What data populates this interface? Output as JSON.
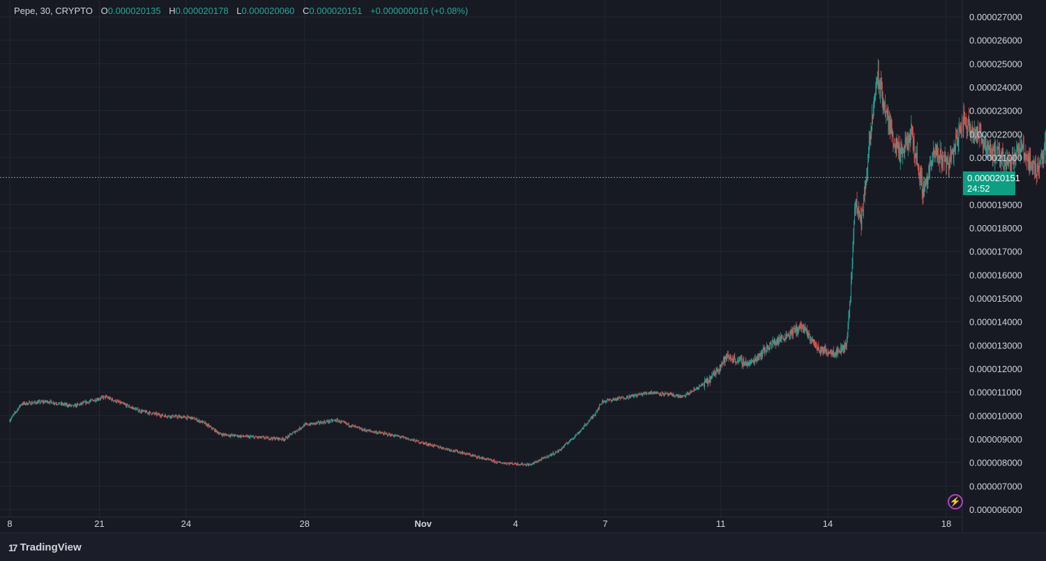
{
  "header": {
    "symbol": "Pepe, 30, CRYPTO",
    "open_label": "O",
    "open": "0.000020135",
    "high_label": "H",
    "high": "0.000020178",
    "low_label": "L",
    "low": "0.000020060",
    "close_label": "C",
    "close": "0.000020151",
    "change": "+0.000000016 (+0.08%)"
  },
  "price_tag": {
    "price": "0.000020151",
    "countdown": "24:52"
  },
  "footer": {
    "brand": "TradingView",
    "logo_text": "17"
  },
  "icons": {
    "alert": "lightning-icon"
  },
  "colors": {
    "background": "#171a23",
    "grid": "#232733",
    "up": "#26a69a",
    "down": "#ef5350",
    "price_tag": "#0d9e84",
    "text": "#d1d4dc",
    "alert": "#b242c9"
  },
  "chart_data": {
    "type": "candlestick",
    "interval": "30",
    "y_axis": {
      "ticks": [
        "0.000027000",
        "0.000026000",
        "0.000025000",
        "0.000024000",
        "0.000023000",
        "0.000022000",
        "0.000021000",
        "0.000019000",
        "0.000018000",
        "0.000017000",
        "0.000016000",
        "0.000015000",
        "0.000014000",
        "0.000013000",
        "0.000012000",
        "0.000011000",
        "0.000010000",
        "0.000009000",
        "0.000008000",
        "0.000007000",
        "0.000006000"
      ],
      "range": [
        6e-06,
        2.7e-05
      ]
    },
    "x_axis": {
      "ticks": [
        {
          "label": "8",
          "bold": false
        },
        {
          "label": "21",
          "bold": false
        },
        {
          "label": "24",
          "bold": false
        },
        {
          "label": "28",
          "bold": false
        },
        {
          "label": "Nov",
          "bold": true
        },
        {
          "label": "4",
          "bold": false
        },
        {
          "label": "7",
          "bold": false
        },
        {
          "label": "11",
          "bold": false
        },
        {
          "label": "14",
          "bold": false
        },
        {
          "label": "18",
          "bold": false
        }
      ]
    },
    "current_price": 2.0151e-05,
    "price_path": [
      [
        0,
        9.8e-06
      ],
      [
        0.4,
        1.05e-05
      ],
      [
        1.3,
        1.06e-05
      ],
      [
        2.2,
        1.04e-05
      ],
      [
        3.3,
        1.08e-05
      ],
      [
        4.5,
        1.02e-05
      ],
      [
        5.3,
        1e-05
      ],
      [
        6.3,
        9.9e-06
      ],
      [
        6.7,
        9.7e-06
      ],
      [
        7.3,
        9.2e-06
      ],
      [
        8.2,
        9.1e-06
      ],
      [
        9.5,
        9e-06
      ],
      [
        10.2,
        9.6e-06
      ],
      [
        11.3,
        9.8e-06
      ],
      [
        12.2,
        9.4e-06
      ],
      [
        13.5,
        9.1e-06
      ],
      [
        14.4,
        8.8e-06
      ],
      [
        15.7,
        8.4e-06
      ],
      [
        16.9,
        8e-06
      ],
      [
        18.0,
        7.9e-06
      ],
      [
        19.0,
        8.5e-06
      ],
      [
        19.7,
        9.3e-06
      ],
      [
        20.2,
        1e-05
      ],
      [
        20.5,
        1.06e-05
      ],
      [
        21.4,
        1.08e-05
      ],
      [
        22.2,
        1.1e-05
      ],
      [
        23.3,
        1.08e-05
      ],
      [
        24.2,
        1.15e-05
      ],
      [
        24.8,
        1.25e-05
      ],
      [
        25.6,
        1.22e-05
      ],
      [
        26.3,
        1.3e-05
      ],
      [
        27.4,
        1.38e-05
      ],
      [
        28.0,
        1.28e-05
      ],
      [
        28.6,
        1.27e-05
      ],
      [
        28.95,
        1.3e-05
      ],
      [
        29.1,
        1.55e-05
      ],
      [
        29.25,
        1.92e-05
      ],
      [
        29.45,
        1.82e-05
      ],
      [
        29.7,
        2.1e-05
      ],
      [
        30.0,
        2.45e-05
      ],
      [
        30.4,
        2.25e-05
      ],
      [
        30.8,
        2.1e-05
      ],
      [
        31.2,
        2.2e-05
      ],
      [
        31.6,
        1.96e-05
      ],
      [
        32.0,
        2.12e-05
      ],
      [
        32.5,
        2.08e-05
      ],
      [
        33.0,
        2.26e-05
      ],
      [
        33.5,
        2.2e-05
      ],
      [
        34.0,
        2.12e-05
      ],
      [
        34.5,
        2.08e-05
      ],
      [
        35.0,
        2.14e-05
      ],
      [
        35.5,
        2.04e-05
      ],
      [
        36.0,
        2.2e-05
      ],
      [
        36.5,
        2.1e-05
      ],
      [
        37.0,
        2.12e-05
      ],
      [
        37.5,
        2.22e-05
      ],
      [
        38.0,
        2.1e-05
      ],
      [
        38.25,
        2.02e-05
      ]
    ]
  }
}
